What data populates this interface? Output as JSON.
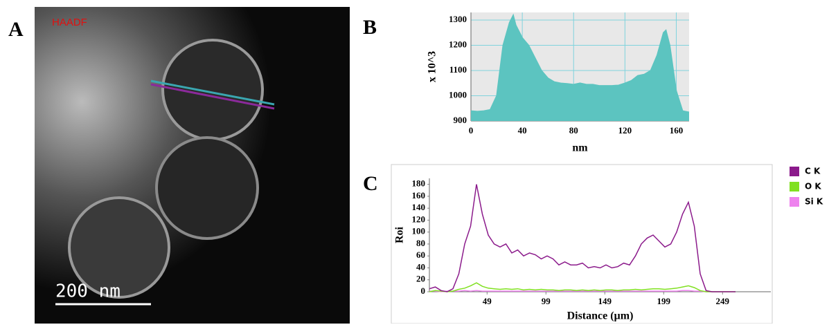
{
  "panel_labels": [
    "A",
    "B",
    "C"
  ],
  "image": {
    "label": "HAADF",
    "scale_bar": "200 nm"
  },
  "chart_data": [
    {
      "type": "area",
      "y_label": "x 10^3",
      "x_label": "nm",
      "color": "#5cc4c0",
      "grid": true,
      "x": [
        0,
        5,
        10,
        15,
        20,
        25,
        30,
        33,
        35,
        40,
        45,
        50,
        55,
        60,
        65,
        70,
        75,
        80,
        85,
        90,
        95,
        100,
        105,
        110,
        115,
        120,
        125,
        130,
        135,
        140,
        145,
        150,
        152,
        155,
        160,
        165,
        170
      ],
      "values": [
        940,
        938,
        940,
        945,
        1000,
        1200,
        1290,
        1320,
        1280,
        1230,
        1200,
        1150,
        1100,
        1070,
        1055,
        1050,
        1048,
        1045,
        1050,
        1045,
        1045,
        1040,
        1040,
        1040,
        1042,
        1050,
        1060,
        1080,
        1085,
        1100,
        1160,
        1250,
        1260,
        1200,
        1020,
        940,
        935
      ],
      "xlim": [
        0,
        170
      ],
      "ylim": [
        900,
        1330
      ],
      "xticks": [
        0,
        40,
        80,
        120,
        160
      ],
      "yticks": [
        900,
        1000,
        1100,
        1200,
        1300
      ]
    },
    {
      "type": "line",
      "y_label": "Roi",
      "x_label": "Distance (µm)",
      "grid": false,
      "legend": "right",
      "x": [
        0,
        5,
        10,
        15,
        20,
        25,
        30,
        35,
        40,
        45,
        50,
        55,
        60,
        65,
        70,
        75,
        80,
        85,
        90,
        95,
        100,
        105,
        110,
        115,
        120,
        125,
        130,
        135,
        140,
        145,
        150,
        155,
        160,
        165,
        170,
        175,
        180,
        185,
        190,
        195,
        200,
        205,
        210,
        215,
        220,
        225,
        230,
        235,
        240,
        245,
        250,
        255,
        260
      ],
      "series": [
        {
          "name": "C  K",
          "color": "#8b1a8b",
          "values": [
            5,
            8,
            2,
            0,
            5,
            30,
            80,
            110,
            180,
            130,
            95,
            80,
            75,
            80,
            65,
            70,
            60,
            65,
            62,
            55,
            60,
            55,
            45,
            50,
            45,
            45,
            48,
            40,
            42,
            40,
            45,
            40,
            42,
            48,
            45,
            60,
            80,
            90,
            95,
            85,
            75,
            80,
            100,
            130,
            150,
            110,
            30,
            2,
            0,
            0,
            0,
            0,
            0
          ]
        },
        {
          "name": "O  K",
          "color": "#80e020",
          "values": [
            0,
            2,
            1,
            0,
            1,
            4,
            6,
            10,
            15,
            9,
            6,
            5,
            4,
            5,
            4,
            5,
            3,
            4,
            3,
            4,
            3,
            3,
            2,
            3,
            3,
            2,
            3,
            2,
            3,
            2,
            3,
            3,
            2,
            3,
            3,
            4,
            3,
            4,
            5,
            5,
            4,
            5,
            6,
            8,
            10,
            7,
            2,
            0,
            0,
            0,
            0,
            0,
            0
          ]
        },
        {
          "name": "Si K",
          "color": "#ee82ee",
          "values": [
            1,
            1,
            0,
            1,
            1,
            1,
            2,
            1,
            2,
            1,
            1,
            1,
            1,
            1,
            1,
            1,
            1,
            1,
            1,
            1,
            1,
            1,
            1,
            1,
            1,
            1,
            1,
            1,
            1,
            1,
            1,
            1,
            1,
            1,
            1,
            1,
            1,
            1,
            1,
            1,
            1,
            1,
            1,
            2,
            2,
            1,
            1,
            0,
            0,
            0,
            0,
            0,
            0
          ]
        }
      ],
      "xlim": [
        0,
        290
      ],
      "ylim": [
        0,
        190
      ],
      "xticks": [
        49,
        99,
        149,
        199,
        249
      ],
      "yticks": [
        0,
        20,
        40,
        60,
        80,
        100,
        120,
        140,
        160,
        180
      ]
    }
  ]
}
